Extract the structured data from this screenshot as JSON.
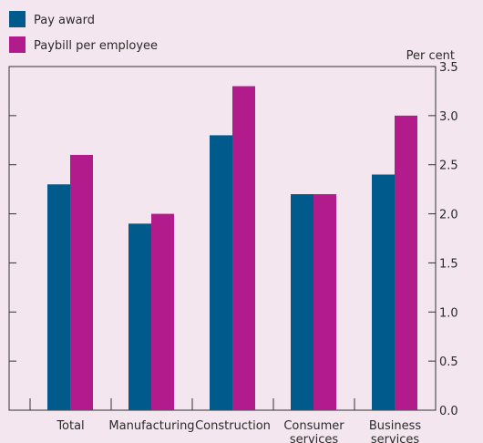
{
  "chart_data": {
    "type": "bar",
    "categories": [
      [
        "Total"
      ],
      [
        "Manufacturing"
      ],
      [
        "Construction"
      ],
      [
        "Consumer",
        "services"
      ],
      [
        "Business",
        "services"
      ]
    ],
    "series": [
      {
        "name": "Pay award",
        "color": "#005a8c",
        "values": [
          2.3,
          1.9,
          2.8,
          2.2,
          2.4
        ]
      },
      {
        "name": "Paybill per employee",
        "color": "#b21b8c",
        "values": [
          2.6,
          2.0,
          3.3,
          2.2,
          3.0
        ]
      }
    ],
    "ylabel": "Per cent",
    "ylim": [
      0,
      3.5
    ],
    "yticks": [
      "0.0",
      "0.5",
      "1.0",
      "1.5",
      "2.0",
      "2.5",
      "3.0",
      "3.5"
    ],
    "grid": false,
    "legend": "top-left"
  }
}
